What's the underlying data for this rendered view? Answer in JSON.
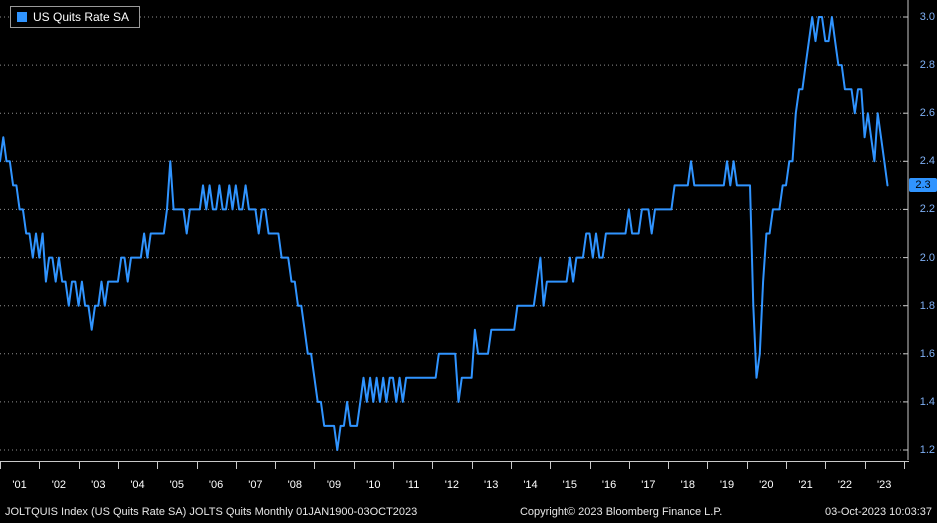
{
  "legend": {
    "label": "US Quits Rate SA"
  },
  "last_value": "2.3",
  "colors": {
    "background": "#000000",
    "line": "#3094ff",
    "legend_swatch": "#3094ff",
    "axis_text": "#7fb0f5",
    "grid": "#8f8f8f",
    "frame": "#c8c8c8",
    "last_value_bg": "#3094ff",
    "last_value_text": "#000000",
    "x_label_text": "#ffffff",
    "footer_text": "#e8e8e8"
  },
  "y_axis": {
    "ticks": [
      "3.0",
      "2.8",
      "2.6",
      "2.4",
      "2.2",
      "2.0",
      "1.8",
      "1.6",
      "1.4",
      "1.2"
    ]
  },
  "x_axis": {
    "labels": [
      "'01",
      "'02",
      "'03",
      "'04",
      "'05",
      "'06",
      "'07",
      "'08",
      "'09",
      "'10",
      "'11",
      "'12",
      "'13",
      "'14",
      "'15",
      "'16",
      "'17",
      "'18",
      "'19",
      "'20",
      "'21",
      "'22",
      "'23"
    ]
  },
  "footer": {
    "left": "JOLTQUIS Index (US Quits Rate SA) JOLTS Quits  Monthly 01JAN1900-03OCT2023",
    "center": "Copyright© 2023 Bloomberg Finance L.P.",
    "right": "03-Oct-2023 10:03:37"
  },
  "chart_data": {
    "type": "line",
    "title": "US Quits Rate SA",
    "x_tick_labels": [
      "'01",
      "'02",
      "'03",
      "'04",
      "'05",
      "'06",
      "'07",
      "'08",
      "'09",
      "'10",
      "'11",
      "'12",
      "'13",
      "'14",
      "'15",
      "'16",
      "'17",
      "'18",
      "'19",
      "'20",
      "'21",
      "'22",
      "'23"
    ],
    "ylim": [
      1.2,
      3.0
    ],
    "y_ticks": [
      1.2,
      1.4,
      1.6,
      1.8,
      2.0,
      2.2,
      2.4,
      2.6,
      2.8,
      3.0
    ],
    "grid": "horizontal-dotted",
    "legend_position": "top-left",
    "last_point_label": 2.3,
    "series": [
      {
        "name": "US Quits Rate SA",
        "start": "2001-01",
        "end": "2023-08",
        "frequency": "monthly",
        "values": [
          2.4,
          2.5,
          2.4,
          2.4,
          2.3,
          2.3,
          2.2,
          2.2,
          2.1,
          2.1,
          2.0,
          2.1,
          2.0,
          2.1,
          1.9,
          2.0,
          2.0,
          1.9,
          2.0,
          1.9,
          1.9,
          1.8,
          1.9,
          1.9,
          1.8,
          1.9,
          1.8,
          1.8,
          1.7,
          1.8,
          1.8,
          1.9,
          1.8,
          1.9,
          1.9,
          1.9,
          1.9,
          2.0,
          2.0,
          1.9,
          2.0,
          2.0,
          2.0,
          2.0,
          2.1,
          2.0,
          2.1,
          2.1,
          2.1,
          2.1,
          2.1,
          2.2,
          2.4,
          2.2,
          2.2,
          2.2,
          2.2,
          2.1,
          2.2,
          2.2,
          2.2,
          2.2,
          2.3,
          2.2,
          2.3,
          2.2,
          2.2,
          2.3,
          2.2,
          2.2,
          2.3,
          2.2,
          2.3,
          2.2,
          2.2,
          2.3,
          2.2,
          2.2,
          2.2,
          2.1,
          2.2,
          2.2,
          2.1,
          2.1,
          2.1,
          2.1,
          2.0,
          2.0,
          2.0,
          1.9,
          1.9,
          1.8,
          1.8,
          1.7,
          1.6,
          1.6,
          1.5,
          1.4,
          1.4,
          1.3,
          1.3,
          1.3,
          1.3,
          1.2,
          1.3,
          1.3,
          1.4,
          1.3,
          1.3,
          1.3,
          1.4,
          1.5,
          1.4,
          1.5,
          1.4,
          1.5,
          1.4,
          1.5,
          1.4,
          1.5,
          1.5,
          1.4,
          1.5,
          1.4,
          1.5,
          1.5,
          1.5,
          1.5,
          1.5,
          1.5,
          1.5,
          1.5,
          1.5,
          1.5,
          1.6,
          1.6,
          1.6,
          1.6,
          1.6,
          1.6,
          1.4,
          1.5,
          1.5,
          1.5,
          1.5,
          1.7,
          1.6,
          1.6,
          1.6,
          1.6,
          1.7,
          1.7,
          1.7,
          1.7,
          1.7,
          1.7,
          1.7,
          1.7,
          1.8,
          1.8,
          1.8,
          1.8,
          1.8,
          1.8,
          1.9,
          2.0,
          1.8,
          1.9,
          1.9,
          1.9,
          1.9,
          1.9,
          1.9,
          1.9,
          2.0,
          1.9,
          2.0,
          2.0,
          2.0,
          2.1,
          2.1,
          2.0,
          2.1,
          2.0,
          2.0,
          2.1,
          2.1,
          2.1,
          2.1,
          2.1,
          2.1,
          2.1,
          2.2,
          2.1,
          2.1,
          2.1,
          2.2,
          2.2,
          2.2,
          2.1,
          2.2,
          2.2,
          2.2,
          2.2,
          2.2,
          2.2,
          2.3,
          2.3,
          2.3,
          2.3,
          2.3,
          2.4,
          2.3,
          2.3,
          2.3,
          2.3,
          2.3,
          2.3,
          2.3,
          2.3,
          2.3,
          2.3,
          2.4,
          2.3,
          2.4,
          2.3,
          2.3,
          2.3,
          2.3,
          2.3,
          1.8,
          1.5,
          1.6,
          1.9,
          2.1,
          2.1,
          2.2,
          2.2,
          2.2,
          2.3,
          2.3,
          2.4,
          2.4,
          2.6,
          2.7,
          2.7,
          2.8,
          2.9,
          3.0,
          2.9,
          3.0,
          3.0,
          2.9,
          2.9,
          3.0,
          2.9,
          2.8,
          2.8,
          2.7,
          2.7,
          2.7,
          2.6,
          2.7,
          2.7,
          2.5,
          2.6,
          2.5,
          2.4,
          2.6,
          2.5,
          2.4,
          2.3
        ]
      }
    ]
  }
}
